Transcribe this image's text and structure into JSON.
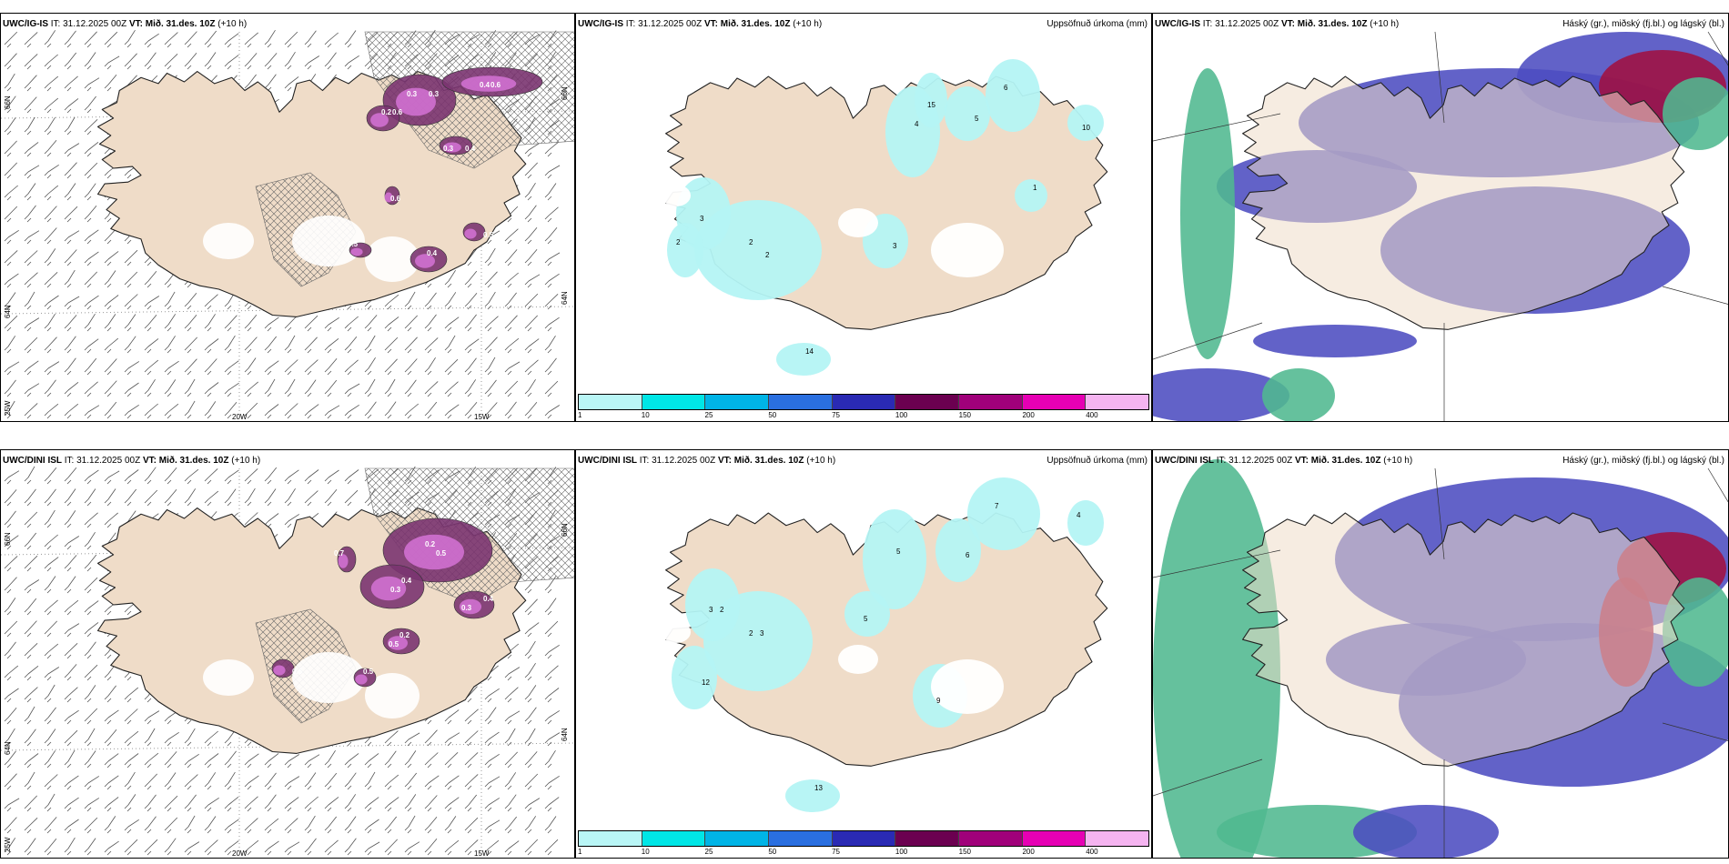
{
  "rows": [
    {
      "model": "UWC/IG-IS",
      "it": "IT: 31.12.2025 00Z",
      "vt": "VT: Mið. 31.des. 10Z",
      "lead": "(+10 h)"
    },
    {
      "model": "UWC/DINI ISL",
      "it": "IT: 31.12.2025 00Z",
      "vt": "VT: Mið. 31.des. 10Z",
      "lead": "(+10 h)"
    }
  ],
  "panel_titles": {
    "precip": "Uppsöfnuð úrkoma (mm)",
    "cloud": "Háský (gr.), miðský (fj.bl.) og lágský (bl.)"
  },
  "axis_labels": {
    "lon": [
      "20W",
      "15W"
    ],
    "lat_left": [
      "66N",
      "64N"
    ],
    "corner": "25W"
  },
  "colorbar": {
    "ticks": [
      "1",
      "10",
      "25",
      "50",
      "75",
      "100",
      "150",
      "200",
      "400"
    ],
    "colors": [
      "#b9f6f6",
      "#00e6e6",
      "#00b4e6",
      "#2a6fe0",
      "#2a2ab4",
      "#6b0050",
      "#a0007a",
      "#e600b4",
      "#f5b4f0"
    ]
  },
  "colors": {
    "land": "#efdcc8",
    "precip_light": "#b4f4f4",
    "snow_purple": "#7a3470",
    "snow_pink": "#d070d0",
    "cloud_high": "#4c4cc0",
    "cloud_low": "#50b890",
    "cloud_mid": "#a01040"
  },
  "snow_labels_top": [
    "0.3",
    "0.6",
    "0.6",
    "0.3",
    "0.4",
    "0.5",
    "0.5",
    "0.6",
    "0.3",
    "0.4",
    "0.2",
    "0.4"
  ],
  "snow_labels_bottom": [
    "0.2",
    "0.3",
    "0.4",
    "0.5",
    "0.5",
    "0.6",
    "0.7",
    "0.5",
    "0.4",
    "0.3",
    "0.2"
  ],
  "precip_labels_top": [
    "2",
    "3",
    "4",
    "5",
    "6",
    "15",
    "14",
    "3",
    "2",
    "10",
    "1",
    "2"
  ],
  "precip_labels_bottom": [
    "2",
    "3",
    "5",
    "6",
    "7",
    "9",
    "13",
    "12",
    "4",
    "5",
    "3",
    "2"
  ]
}
